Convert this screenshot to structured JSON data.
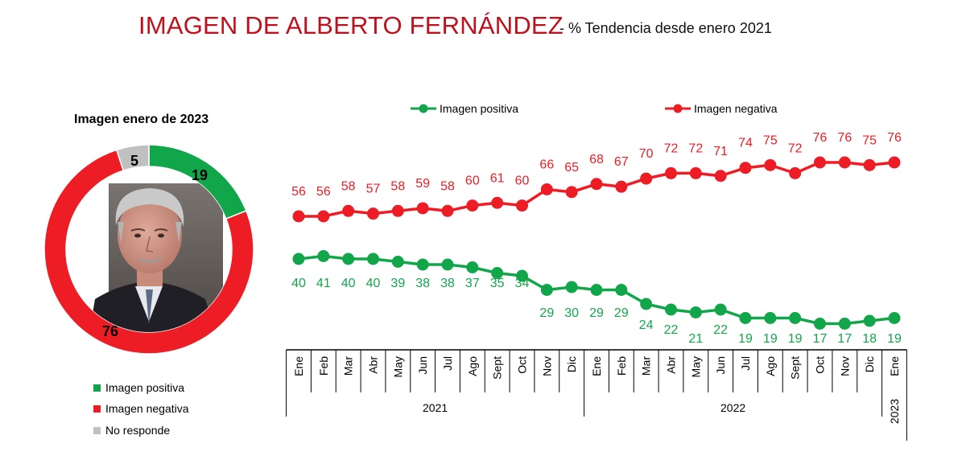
{
  "title": "IMAGEN DE ALBERTO FERNÁNDEZ",
  "subtitle": "- % Tendencia desde enero 2021",
  "donut": {
    "title": "Imagen enero de 2023",
    "legend": [
      {
        "label": "Imagen positiva",
        "color": "#12a64a"
      },
      {
        "label": "Imagen negativa",
        "color": "#ee1c24"
      },
      {
        "label": "No responde",
        "color": "#c0c0c0"
      }
    ]
  },
  "colors": {
    "positive": "#12a64a",
    "negative": "#ee1c24",
    "noresponse": "#c0c0c0",
    "title": "#c0101c"
  },
  "chart_data": [
    {
      "type": "pie",
      "title": "Imagen enero de 2023",
      "labels": [
        "Imagen positiva",
        "Imagen negativa",
        "No responde"
      ],
      "values": [
        19,
        76,
        5
      ],
      "colors": [
        "#12a64a",
        "#ee1c24",
        "#c0c0c0"
      ],
      "legend": "bottom-left"
    },
    {
      "type": "line",
      "x": [
        "Ene",
        "Feb",
        "Mar",
        "Abr",
        "May",
        "Jun",
        "Jul",
        "Ago",
        "Sept",
        "Oct",
        "Nov",
        "Dic",
        "Ene",
        "Feb",
        "Mar",
        "Abr",
        "May",
        "Jun",
        "Jul",
        "Ago",
        "Sept",
        "Oct",
        "Nov",
        "Dic",
        "Ene"
      ],
      "year_groups": [
        {
          "label": "2021",
          "count": 12
        },
        {
          "label": "2022",
          "count": 12
        },
        {
          "label": "2023",
          "count": 1
        }
      ],
      "series": [
        {
          "name": "Imagen positiva",
          "color": "#12a64a",
          "values": [
            40,
            41,
            40,
            40,
            39,
            38,
            38,
            37,
            35,
            34,
            29,
            30,
            29,
            29,
            24,
            22,
            21,
            22,
            19,
            19,
            19,
            17,
            17,
            18,
            19
          ]
        },
        {
          "name": "Imagen negativa",
          "color": "#ee1c24",
          "values": [
            56,
            56,
            58,
            57,
            58,
            59,
            58,
            60,
            61,
            60,
            66,
            65,
            68,
            67,
            70,
            72,
            72,
            71,
            74,
            75,
            72,
            76,
            76,
            75,
            76
          ]
        }
      ],
      "legend": "top",
      "grid": false
    }
  ]
}
